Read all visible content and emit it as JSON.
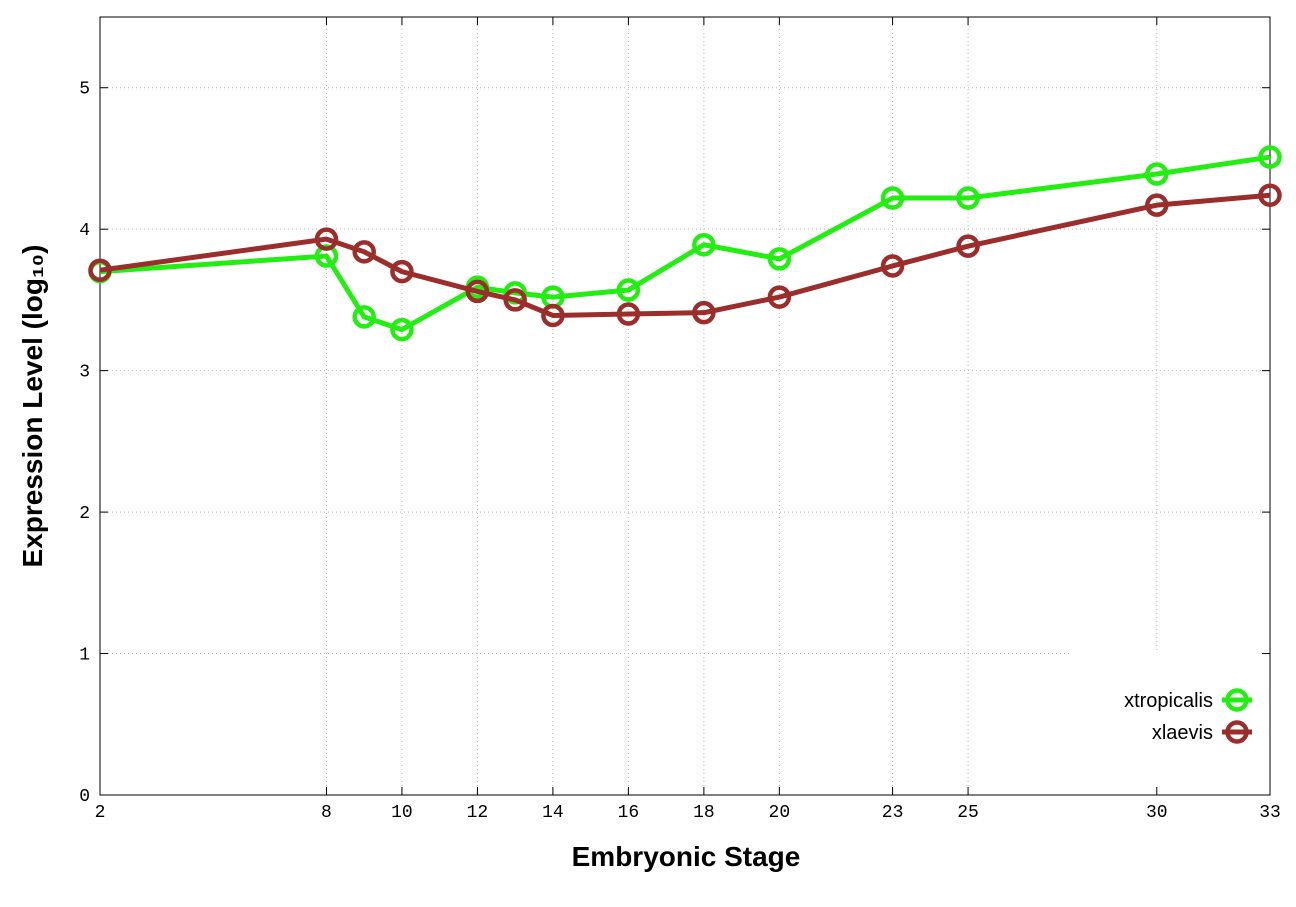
{
  "chart_data": {
    "type": "line",
    "x_label": "Embryonic Stage",
    "y_label": "Expression Level (log₁₀)",
    "x": [
      2,
      8,
      9,
      10,
      12,
      13,
      14,
      16,
      18,
      20,
      23,
      25,
      30,
      33
    ],
    "series": [
      {
        "name": "xtropicalis",
        "color": "#22ee11",
        "values": [
          3.7,
          3.81,
          3.38,
          3.29,
          3.59,
          3.55,
          3.52,
          3.57,
          3.89,
          3.79,
          4.22,
          4.22,
          4.39,
          4.51
        ]
      },
      {
        "name": "xlaevis",
        "color": "#9b2d2b",
        "values": [
          3.71,
          3.93,
          3.84,
          3.7,
          3.56,
          3.5,
          3.39,
          3.4,
          3.41,
          3.52,
          3.74,
          3.88,
          4.17,
          4.24
        ]
      }
    ],
    "xlim": [
      2,
      33
    ],
    "xticks": [
      2,
      8,
      10,
      12,
      14,
      16,
      18,
      20,
      23,
      25,
      30,
      33
    ],
    "ylim": [
      0,
      5.5
    ],
    "yticks": [
      0,
      1,
      2,
      3,
      4,
      5
    ],
    "grid": true,
    "legend": "bottom-right"
  }
}
